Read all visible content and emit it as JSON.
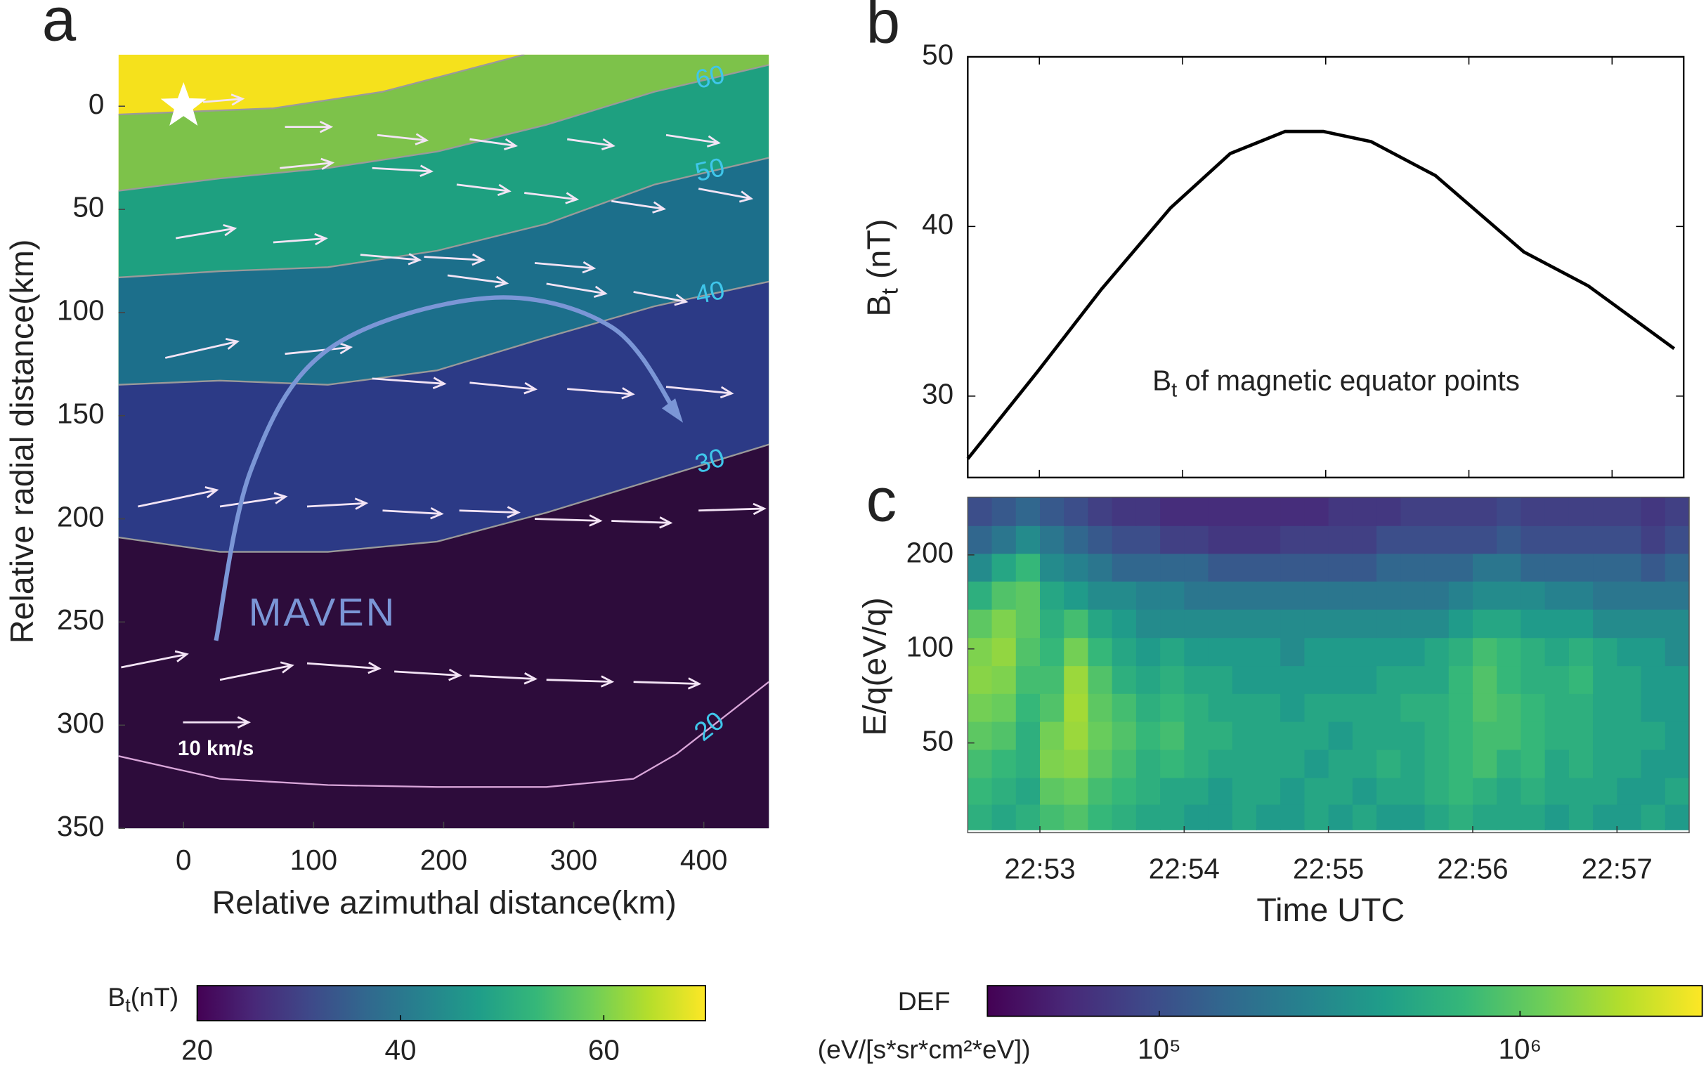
{
  "chart_data": [
    {
      "type": "vector_contour",
      "panel_label": "a",
      "xlabel": "Relative azimuthal distance(km)",
      "ylabel": "Relative radial distance(km)",
      "xlim": [
        -50,
        450
      ],
      "ylim": [
        -25,
        350
      ],
      "y_inverted": true,
      "xticks": [
        0,
        100,
        200,
        300,
        400
      ],
      "yticks": [
        0,
        50,
        100,
        150,
        200,
        250,
        300,
        350
      ],
      "top_color": "#f5e11c",
      "contour_label_color": "#3fc6ea",
      "arrow_color": "#f3e4f5",
      "contours": [
        {
          "color": "#7dc24a",
          "line_color": "#9a9a9a",
          "x": [
            -50,
            69,
            153,
            262
          ],
          "y": [
            4,
            1,
            -7,
            -25
          ]
        },
        {
          "level": 60,
          "color": "#1ea080",
          "line_color": "#9a9a9a",
          "x": [
            -50,
            28,
            111,
            195,
            279,
            362,
            450
          ],
          "y": [
            41,
            35,
            30,
            22,
            9,
            -7,
            -20
          ]
        },
        {
          "level": 50,
          "color": "#1c6f8b",
          "line_color": "#9a9a9a",
          "x": [
            -50,
            28,
            111,
            195,
            279,
            362,
            450
          ],
          "y": [
            83,
            80,
            78,
            70,
            57,
            38,
            25
          ]
        },
        {
          "level": 40,
          "color": "#2c3a86",
          "line_color": "#9a9a9a",
          "x": [
            -50,
            28,
            111,
            195,
            279,
            362,
            450
          ],
          "y": [
            135,
            133,
            135,
            128,
            112,
            97,
            85
          ]
        },
        {
          "level": 30,
          "color": "#2d0c3b",
          "line_color": "#9a9a9a",
          "x": [
            -50,
            28,
            111,
            195,
            279,
            362,
            450
          ],
          "y": [
            209,
            216,
            216,
            211,
            197,
            181,
            164
          ]
        },
        {
          "level": 20,
          "color": "#2d0c3b",
          "line_color": "#d9a6d9",
          "x": [
            -50,
            28,
            111,
            195,
            279,
            346,
            379,
            450
          ],
          "y": [
            315,
            326,
            329,
            330,
            330,
            326,
            314,
            279
          ]
        }
      ],
      "arrows": {
        "x": [
          15,
          78,
          149,
          220,
          295,
          371,
          74,
          145,
          210,
          262,
          329,
          396,
          -6,
          69,
          136,
          203,
          279,
          346,
          185,
          270,
          -14,
          78,
          145,
          220,
          295,
          371,
          -35,
          28,
          95,
          153,
          212,
          270,
          329,
          396,
          -48,
          28,
          95,
          162,
          220,
          279,
          346
        ],
        "y": [
          -2,
          10,
          14,
          16,
          16,
          14,
          30,
          30,
          38,
          42,
          46,
          40,
          64,
          66,
          72,
          82,
          86,
          90,
          73,
          76,
          122,
          120,
          132,
          134,
          137,
          136,
          194,
          194,
          194,
          196,
          196,
          200,
          201,
          196,
          272,
          278,
          270,
          274,
          276,
          278,
          279
        ],
        "u": [
          6,
          7,
          7.5,
          7,
          7,
          8,
          8,
          9,
          8,
          8,
          8,
          8,
          9,
          8,
          9,
          9,
          9,
          8,
          9,
          9,
          11,
          10,
          11,
          10,
          10,
          10,
          12,
          10,
          9,
          9,
          9,
          10,
          9,
          10,
          10,
          11,
          11,
          10,
          10,
          10,
          10
        ],
        "v": [
          -0.5,
          0,
          0.8,
          1,
          1,
          1.2,
          -0.8,
          0.5,
          1,
          1,
          1.2,
          1.5,
          -1.5,
          -0.6,
          0.8,
          1.2,
          1.5,
          1.5,
          0.5,
          0.8,
          -2.5,
          -1,
          0.8,
          1,
          0.8,
          1,
          -2.5,
          -1.5,
          -0.5,
          0.5,
          0.3,
          0.3,
          0.3,
          -0.3,
          -2,
          -2.2,
          0.8,
          0.6,
          0.5,
          0.3,
          0.3
        ]
      },
      "arrow_key": {
        "value": 10,
        "label": "10 km/s"
      },
      "star": {
        "x": 0,
        "y": 0
      },
      "trajectory": {
        "label": "MAVEN",
        "color": "#7b96d6",
        "x": [
          25,
          52,
          111,
          233,
          329,
          380
        ],
        "y": [
          259,
          176,
          118,
          93,
          107,
          150
        ]
      },
      "colorbar": {
        "label": {
          "main": "B",
          "sub": "t",
          "rest": "(nT)"
        },
        "zlim": [
          20,
          70
        ],
        "ticks": [
          20,
          40,
          60
        ]
      }
    },
    {
      "type": "line",
      "panel_label": "b",
      "ylabel": {
        "main": "B",
        "sub": "t",
        "rest": " (nT)"
      },
      "annotation": {
        "main": "B",
        "sub": "t",
        "rest": " of magnetic equator points"
      },
      "xlim": [
        "22:52:30",
        "22:57:30"
      ],
      "ylim": [
        25.2,
        50
      ],
      "yticks": [
        30,
        40,
        50
      ],
      "color": "#000000",
      "x": [
        "22:52:30",
        "22:52:59",
        "22:53:26",
        "22:53:55",
        "22:54:20",
        "22:54:43",
        "22:54:59",
        "22:55:19",
        "22:55:46",
        "22:56:23",
        "22:56:50",
        "22:57:26"
      ],
      "values": [
        26.3,
        31.4,
        36.3,
        41.1,
        44.3,
        45.6,
        45.6,
        45,
        43,
        38.5,
        36.5,
        32.8
      ]
    },
    {
      "type": "heatmap",
      "panel_label": "c",
      "xlabel": "Time UTC",
      "ylabel": "E/q(eV/q)",
      "xlim": [
        "22:52:30",
        "22:57:30"
      ],
      "ylim": [
        25.8,
        306
      ],
      "log_y": true,
      "xticks": [
        "22:53",
        "22:54",
        "22:55",
        "22:56",
        "22:57"
      ],
      "yticks": [
        50,
        100,
        200
      ],
      "x": [
        "22:52:35",
        "22:52:45",
        "22:52:55",
        "22:53:05",
        "22:53:15",
        "22:53:25",
        "22:53:35",
        "22:53:45",
        "22:53:55",
        "22:54:05",
        "22:54:15",
        "22:54:25",
        "22:54:35",
        "22:54:45",
        "22:54:55",
        "22:55:05",
        "22:55:15",
        "22:55:25",
        "22:55:35",
        "22:55:45",
        "22:55:55",
        "22:56:05",
        "22:56:15",
        "22:56:25",
        "22:56:35",
        "22:56:45",
        "22:56:55",
        "22:57:05",
        "22:57:15",
        "22:57:25"
      ],
      "y": [
        29,
        35,
        43,
        53,
        65,
        80,
        98,
        121,
        149,
        183,
        224,
        276
      ],
      "z": [
        [
          600000.0,
          500000.0,
          600000.0,
          800000.0,
          900000.0,
          700000.0,
          600000.0,
          500000.0,
          500000.0,
          400000.0,
          400000.0,
          500000.0,
          400000.0,
          400000.0,
          500000.0,
          400000.0,
          500000.0,
          400000.0,
          400000.0,
          500000.0,
          600000.0,
          500000.0,
          500000.0,
          500000.0,
          400000.0,
          500000.0,
          400000.0,
          400000.0,
          500000.0,
          400000.0
        ],
        [
          700000.0,
          600000.0,
          500000.0,
          1000000.0,
          1100000.0,
          800000.0,
          700000.0,
          600000.0,
          500000.0,
          500000.0,
          400000.0,
          500000.0,
          500000.0,
          400000.0,
          500000.0,
          500000.0,
          400000.0,
          500000.0,
          500000.0,
          600000.0,
          700000.0,
          600000.0,
          500000.0,
          600000.0,
          500000.0,
          500000.0,
          500000.0,
          400000.0,
          400000.0,
          500000.0
        ],
        [
          800000.0,
          700000.0,
          600000.0,
          1300000.0,
          1400000.0,
          1000000.0,
          800000.0,
          600000.0,
          700000.0,
          600000.0,
          500000.0,
          500000.0,
          500000.0,
          500000.0,
          400000.0,
          500000.0,
          500000.0,
          600000.0,
          500000.0,
          600000.0,
          700000.0,
          800000.0,
          600000.0,
          700000.0,
          500000.0,
          600000.0,
          500000.0,
          500000.0,
          400000.0,
          400000.0
        ],
        [
          1000000.0,
          900000.0,
          600000.0,
          1200000.0,
          1600000.0,
          1100000.0,
          900000.0,
          700000.0,
          800000.0,
          600000.0,
          600000.0,
          500000.0,
          500000.0,
          500000.0,
          500000.0,
          400000.0,
          500000.0,
          500000.0,
          500000.0,
          600000.0,
          700000.0,
          800000.0,
          800000.0,
          700000.0,
          600000.0,
          600000.0,
          500000.0,
          500000.0,
          500000.0,
          400000.0
        ],
        [
          1200000.0,
          1100000.0,
          700000.0,
          900000.0,
          1700000.0,
          1000000.0,
          800000.0,
          600000.0,
          700000.0,
          600000.0,
          500000.0,
          500000.0,
          500000.0,
          400000.0,
          500000.0,
          500000.0,
          500000.0,
          500000.0,
          600000.0,
          600000.0,
          700000.0,
          900000.0,
          800000.0,
          700000.0,
          600000.0,
          600000.0,
          500000.0,
          500000.0,
          400000.0,
          400000.0
        ],
        [
          1400000.0,
          1300000.0,
          800000.0,
          800000.0,
          1600000.0,
          900000.0,
          600000.0,
          500000.0,
          600000.0,
          500000.0,
          500000.0,
          400000.0,
          400000.0,
          400000.0,
          400000.0,
          400000.0,
          400000.0,
          500000.0,
          500000.0,
          500000.0,
          700000.0,
          900000.0,
          700000.0,
          600000.0,
          600000.0,
          700000.0,
          500000.0,
          500000.0,
          400000.0,
          400000.0
        ],
        [
          1300000.0,
          1500000.0,
          900000.0,
          700000.0,
          1200000.0,
          700000.0,
          500000.0,
          400000.0,
          500000.0,
          400000.0,
          400000.0,
          400000.0,
          400000.0,
          300000.0,
          400000.0,
          400000.0,
          400000.0,
          400000.0,
          400000.0,
          500000.0,
          600000.0,
          800000.0,
          700000.0,
          600000.0,
          500000.0,
          600000.0,
          500000.0,
          400000.0,
          400000.0,
          300000.0
        ],
        [
          1000000.0,
          1300000.0,
          1000000.0,
          600000.0,
          800000.0,
          500000.0,
          400000.0,
          300000.0,
          300000.0,
          300000.0,
          300000.0,
          300000.0,
          300000.0,
          300000.0,
          300000.0,
          300000.0,
          300000.0,
          300000.0,
          300000.0,
          300000.0,
          400000.0,
          500000.0,
          500000.0,
          400000.0,
          400000.0,
          400000.0,
          300000.0,
          300000.0,
          300000.0,
          300000.0
        ],
        [
          600000.0,
          900000.0,
          1000000.0,
          500000.0,
          400000.0,
          300000.0,
          300000.0,
          250000.0,
          250000.0,
          200000.0,
          200000.0,
          200000.0,
          200000.0,
          200000.0,
          200000.0,
          200000.0,
          200000.0,
          200000.0,
          200000.0,
          200000.0,
          250000.0,
          300000.0,
          300000.0,
          300000.0,
          250000.0,
          250000.0,
          200000.0,
          200000.0,
          200000.0,
          200000.0
        ],
        [
          300000.0,
          500000.0,
          700000.0,
          300000.0,
          250000.0,
          200000.0,
          150000.0,
          150000.0,
          150000.0,
          150000.0,
          120000.0,
          120000.0,
          120000.0,
          120000.0,
          120000.0,
          120000.0,
          120000.0,
          150000.0,
          150000.0,
          150000.0,
          150000.0,
          200000.0,
          200000.0,
          150000.0,
          150000.0,
          150000.0,
          150000.0,
          150000.0,
          120000.0,
          150000.0
        ],
        [
          150000.0,
          200000.0,
          300000.0,
          200000.0,
          150000.0,
          120000.0,
          100000.0,
          100000.0,
          80000.0,
          80000.0,
          70000.0,
          70000.0,
          70000.0,
          80000.0,
          80000.0,
          80000.0,
          80000.0,
          100000.0,
          100000.0,
          100000.0,
          100000.0,
          100000.0,
          120000.0,
          100000.0,
          100000.0,
          100000.0,
          100000.0,
          100000.0,
          80000.0,
          100000.0
        ],
        [
          100000.0,
          120000.0,
          150000.0,
          120000.0,
          100000.0,
          80000.0,
          70000.0,
          70000.0,
          60000.0,
          60000.0,
          60000.0,
          60000.0,
          60000.0,
          60000.0,
          60000.0,
          70000.0,
          70000.0,
          70000.0,
          80000.0,
          80000.0,
          80000.0,
          80000.0,
          90000.0,
          80000.0,
          80000.0,
          80000.0,
          80000.0,
          80000.0,
          70000.0,
          80000.0
        ]
      ],
      "colorbar": {
        "label": {
          "main": "DEF",
          "units": "(eV/[s*sr*cm²*eV])"
        },
        "zlim": [
          33400,
          3200000
        ],
        "log": true,
        "ticks": [
          {
            "value": 100000,
            "label": "10⁵"
          },
          {
            "value": 1000000,
            "label": "10⁶"
          }
        ]
      }
    }
  ]
}
